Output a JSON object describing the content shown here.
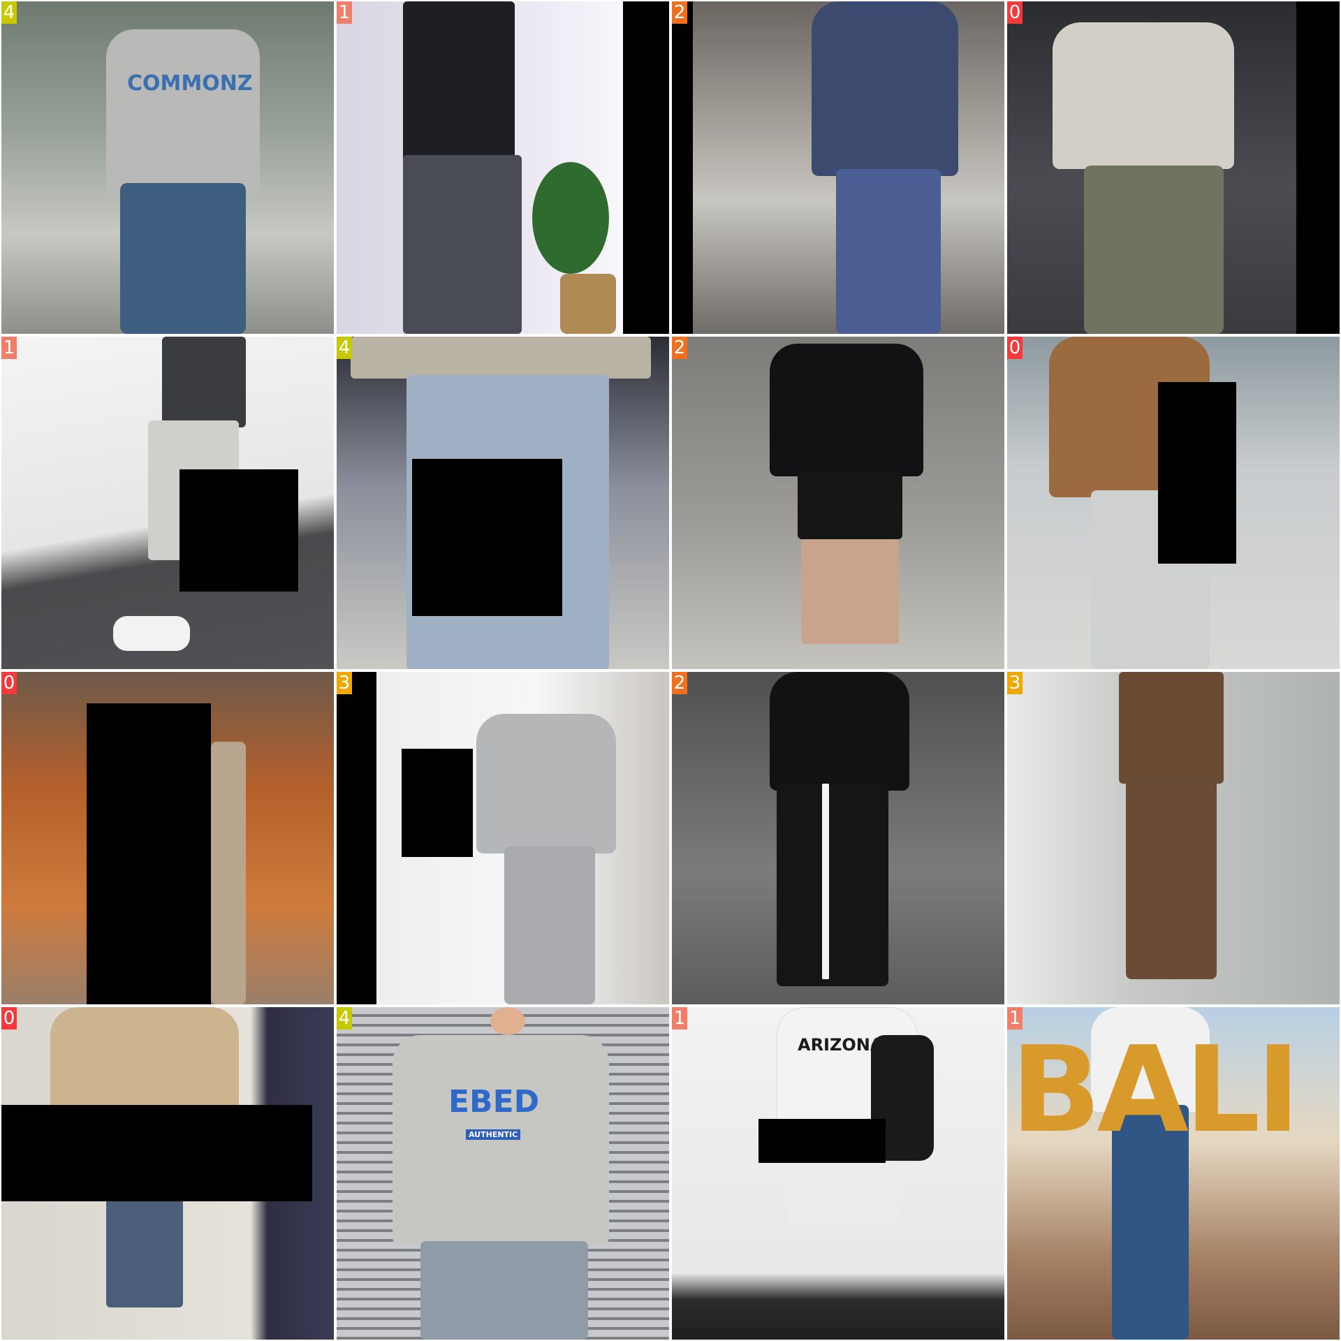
{
  "tiles": [
    {
      "label": "4",
      "badge_color": "#c8c800",
      "print": "COMMONZ"
    },
    {
      "label": "1",
      "badge_color": "#f07f6a",
      "print": ""
    },
    {
      "label": "2",
      "badge_color": "#f07020",
      "print": ""
    },
    {
      "label": "0",
      "badge_color": "#f23a3a",
      "print": ""
    },
    {
      "label": "1",
      "badge_color": "#f07f6a",
      "print": ""
    },
    {
      "label": "4",
      "badge_color": "#c8c800",
      "print": ""
    },
    {
      "label": "2",
      "badge_color": "#f07020",
      "print": ""
    },
    {
      "label": "0",
      "badge_color": "#f23a3a",
      "print": ""
    },
    {
      "label": "0",
      "badge_color": "#f23a3a",
      "print": ""
    },
    {
      "label": "3",
      "badge_color": "#f0a800",
      "print": ""
    },
    {
      "label": "2",
      "badge_color": "#f07020",
      "print": ""
    },
    {
      "label": "3",
      "badge_color": "#f0a800",
      "print": ""
    },
    {
      "label": "0",
      "badge_color": "#f23a3a",
      "print": ""
    },
    {
      "label": "4",
      "badge_color": "#c8c800",
      "print": "EBED",
      "print_sub": "AUTHENTIC"
    },
    {
      "label": "1",
      "badge_color": "#f07f6a",
      "print": "ARIZONA"
    },
    {
      "label": "1",
      "badge_color": "#f07f6a",
      "print": "BALI"
    }
  ]
}
